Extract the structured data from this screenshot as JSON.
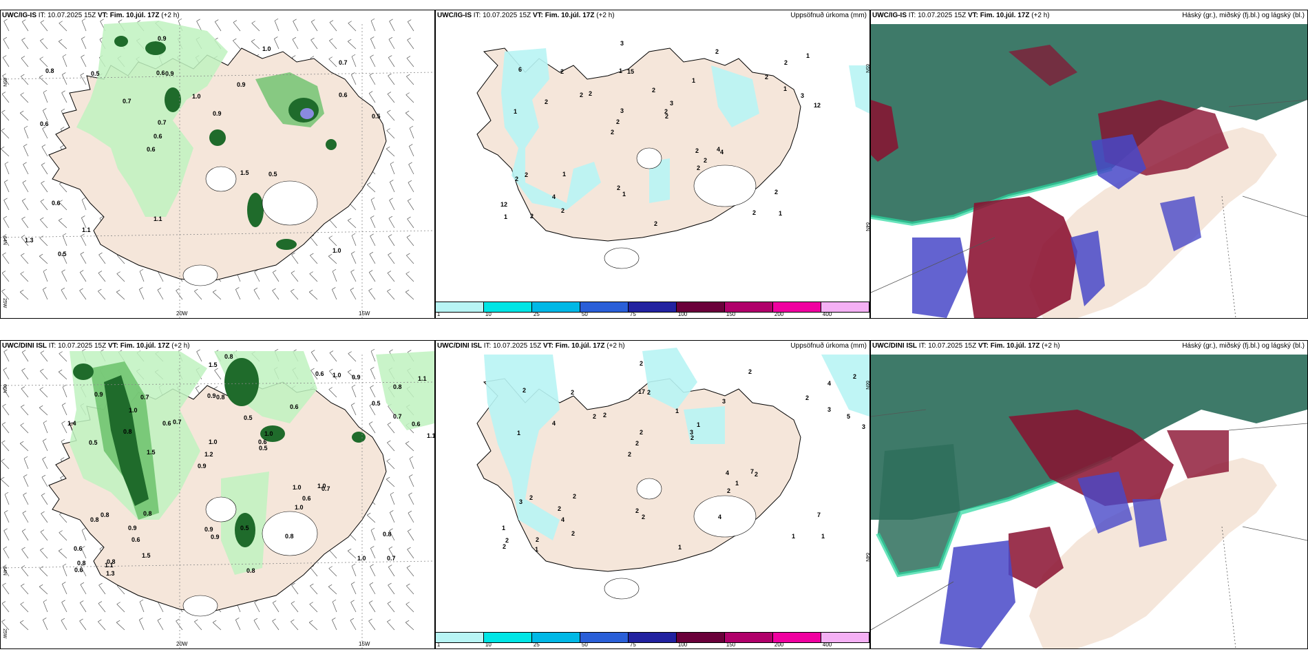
{
  "panels": {
    "top_left": {
      "model": "UWC/IG-IS",
      "it_label": "IT: 10.07.2025 15Z",
      "vt_label": "VT: Fim. 10.júl. 17Z",
      "lead": "(+2 h)",
      "value_labels": [
        "1.0",
        "0.6",
        "0.7",
        "0.6",
        "0.9",
        "0.5",
        "0.6",
        "1.0",
        "0.6",
        "0.7",
        "1.3",
        "1.1",
        "0.9",
        "0.9",
        "0.5",
        "0.8",
        "0.9",
        "0.5",
        "1.5",
        "0.6",
        "0.6",
        "1.1",
        "0.7",
        "0.5",
        "1.0"
      ],
      "lon_labels": [
        "20W",
        "15W"
      ],
      "lat_labels": [
        "65N",
        "64N",
        "25W"
      ]
    },
    "top_mid": {
      "model": "UWC/IG-IS",
      "it_label": "IT: 10.07.2025 15Z",
      "vt_label": "VT: Fim. 10.júl. 17Z",
      "lead": "(+2 h)",
      "title_right": "Uppsöfnuð úrkoma (mm)",
      "value_labels": [
        "1",
        "1",
        "2",
        "2",
        "1",
        "2",
        "1",
        "2",
        "2",
        "2",
        "12",
        "4",
        "15",
        "3",
        "4",
        "6",
        "3",
        "12",
        "2",
        "1",
        "2",
        "2",
        "3",
        "2",
        "2",
        "1",
        "2",
        "2",
        "4",
        "2",
        "2",
        "2",
        "2",
        "2",
        "3",
        "2",
        "1",
        "1",
        "2",
        "2",
        "2",
        "1",
        "2"
      ],
      "lon_labels": [],
      "lat_labels": [
        "65N",
        "64N"
      ]
    },
    "top_right": {
      "model": "UWC/IG-IS",
      "it_label": "IT: 10.07.2025 15Z",
      "vt_label": "VT: Fim. 10.júl. 17Z",
      "lead": "(+2 h)",
      "title_right": "Háský (gr.), miðský (fj.bl.) og lágský (bl.)"
    },
    "bottom_left": {
      "model": "UWC/DINI ISL",
      "it_label": "IT: 10.07.2025 15Z",
      "vt_label": "VT: Fim. 10.júl. 17Z",
      "lead": "(+2 h)",
      "value_labels": [
        "0.7",
        "0.5",
        "0.8",
        "0.9",
        "0.6",
        "0.8",
        "0.9",
        "0.5",
        "0.8",
        "0.7",
        "0.6",
        "0.6",
        "0.8",
        "1.0",
        "0.7",
        "0.9",
        "1.5",
        "1.1",
        "1.0",
        "0.7",
        "1.2",
        "0.9",
        "1.0",
        "0.7",
        "0.6",
        "0.8",
        "1.0",
        "0.8",
        "1.0",
        "0.8",
        "0.6",
        "0.8",
        "1.0",
        "1.5",
        "0.6",
        "0.6",
        "0.8",
        "0.9",
        "0.5",
        "0.8",
        "0.5",
        "1.1",
        "0.6",
        "0.8",
        "0.9",
        "1.3",
        "0.6",
        "0.5",
        "0.9",
        "0.8",
        "1.5",
        "1.4",
        "1.0",
        "1.0",
        "1.1"
      ],
      "lon_labels": [
        "20W",
        "15W"
      ],
      "lat_labels": [
        "66N",
        "64N",
        "25W"
      ]
    },
    "bottom_mid": {
      "model": "UWC/DINI ISL",
      "it_label": "IT: 10.07.2025 15Z",
      "vt_label": "VT: Fim. 10.júl. 17Z",
      "lead": "(+2 h)",
      "title_right": "Uppsöfnuð úrkoma (mm)",
      "value_labels": [
        "1",
        "1",
        "4",
        "2",
        "3",
        "2",
        "17",
        "1",
        "2",
        "2",
        "1",
        "4",
        "2",
        "1",
        "2",
        "2",
        "2",
        "3",
        "4",
        "3",
        "2",
        "2",
        "2",
        "2",
        "2",
        "2",
        "1",
        "7",
        "7",
        "1",
        "2",
        "4",
        "2",
        "2",
        "5",
        "3",
        "2",
        "2",
        "2",
        "3",
        "2",
        "2",
        "1",
        "4",
        "2",
        "1",
        "2"
      ],
      "lon_labels": [],
      "lat_labels": [
        "66N",
        "64N"
      ]
    },
    "bottom_right": {
      "model": "UWC/DINI ISL",
      "it_label": "IT: 10.07.2025 15Z",
      "vt_label": "VT: Fim. 10.júl. 17Z",
      "lead": "(+2 h)",
      "title_right": "Háský (gr.), miðský (fj.bl.) og lágský (bl.)"
    }
  },
  "colorbar": {
    "labels": [
      "1",
      "10",
      "25",
      "50",
      "75",
      "100",
      "150",
      "200",
      "400"
    ],
    "colors": [
      "#b8f4f4",
      "#00e5e5",
      "#00b8e6",
      "#2a5fd8",
      "#2222a0",
      "#6a003a",
      "#b0006a",
      "#f000a0",
      "#f4b0f4"
    ]
  },
  "colors": {
    "land": "#f5e6da",
    "rain_light": "#bff2bf",
    "rain_mid": "#6cc26c",
    "rain_dark": "#1f6b2b",
    "precip_light": "#b8f4f4",
    "cloud_high": "#8a1030",
    "cloud_mid": "#2e6f5c",
    "cloud_low": "#4848c8"
  }
}
